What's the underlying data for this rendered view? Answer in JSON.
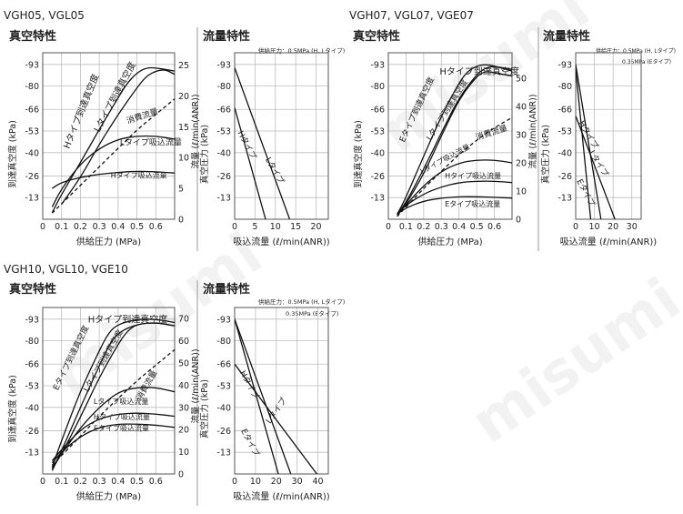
{
  "watermark": "misumi",
  "groups": [
    {
      "title": "VGH05, VGL05",
      "vac_title": "真空特性",
      "flow_title": "流量特性",
      "flow_note": [
        "供給圧力：0.5MPa (H, Lタイプ)"
      ]
    },
    {
      "title": "VGH07, VGL07, VGE07",
      "vac_title": "真空特性",
      "flow_title": "流量特性",
      "flow_note": [
        "供給圧力：0.5MPa (H, Lタイプ)",
        "0.35MPa (Eタイプ)"
      ]
    },
    {
      "title": "VGH10, VGL10, VGE10",
      "vac_title": "真空特性",
      "flow_title": "流量特性",
      "flow_note": [
        "供給圧力：0.5MPa (H, Lタイプ)",
        "0.35MPa (Eタイプ)"
      ]
    }
  ],
  "chart_data": [
    {
      "type": "line",
      "id": "vac05",
      "xlabel": "供給圧力 (MPa)",
      "ylabel": "到達真空度 (kPa)",
      "y2label": "流量 (ℓ/min(ANR))",
      "x_ticks": [
        "0",
        "0.1",
        "0.2",
        "0.3",
        "0.4",
        "0.5",
        "0.6"
      ],
      "y_ticks": [
        "-93",
        "-80",
        "-66",
        "-53",
        "-40",
        "-26",
        "-13"
      ],
      "y2_ticks": [
        "0",
        "5",
        "10",
        "15",
        "20",
        "25"
      ],
      "xlim": [
        0,
        0.7
      ],
      "ylim": [
        0,
        -100
      ],
      "y2lim": [
        0,
        27
      ],
      "series": [
        {
          "name": "Hタイプ到達真空度",
          "axis": "y",
          "dash": false,
          "points": [
            [
              0.05,
              -4
            ],
            [
              0.1,
              -15
            ],
            [
              0.2,
              -34
            ],
            [
              0.3,
              -54
            ],
            [
              0.4,
              -73
            ],
            [
              0.45,
              -82
            ],
            [
              0.5,
              -88
            ],
            [
              0.55,
              -91
            ],
            [
              0.6,
              -91
            ],
            [
              0.7,
              -89
            ]
          ]
        },
        {
          "name": "Lタイプ到達真空度",
          "axis": "y",
          "dash": false,
          "points": [
            [
              0.1,
              -9
            ],
            [
              0.2,
              -25
            ],
            [
              0.3,
              -45
            ],
            [
              0.4,
              -63
            ],
            [
              0.5,
              -79
            ],
            [
              0.55,
              -86
            ],
            [
              0.6,
              -89
            ],
            [
              0.65,
              -90
            ],
            [
              0.7,
              -87
            ]
          ]
        },
        {
          "name": "消費流量",
          "axis": "y2",
          "dash": true,
          "points": [
            [
              0.05,
              1
            ],
            [
              0.2,
              5.5
            ],
            [
              0.3,
              8.5
            ],
            [
              0.4,
              11.5
            ],
            [
              0.5,
              14.5
            ],
            [
              0.6,
              17
            ],
            [
              0.7,
              19.5
            ]
          ]
        },
        {
          "name": "Lタイプ吸込流量",
          "axis": "y2",
          "dash": false,
          "points": [
            [
              0.05,
              2
            ],
            [
              0.1,
              5
            ],
            [
              0.2,
              9
            ],
            [
              0.3,
              11.5
            ],
            [
              0.4,
              13
            ],
            [
              0.5,
              13.5
            ],
            [
              0.6,
              13.5
            ],
            [
              0.7,
              13
            ]
          ]
        },
        {
          "name": "Hタイプ吸込流量",
          "axis": "y2",
          "dash": false,
          "points": [
            [
              0.05,
              5
            ],
            [
              0.1,
              6
            ],
            [
              0.2,
              6.8
            ],
            [
              0.3,
              7.3
            ],
            [
              0.4,
              7.6
            ],
            [
              0.5,
              7.8
            ],
            [
              0.6,
              7.7
            ],
            [
              0.7,
              7.5
            ]
          ]
        }
      ]
    },
    {
      "type": "line",
      "id": "flow05",
      "xlabel": "吸込流量 (ℓ/min(ANR))",
      "ylabel": "真空圧力 (kPa)",
      "x_ticks": [
        "0",
        "5",
        "10",
        "15",
        "20"
      ],
      "y_ticks": [
        "-93",
        "-80",
        "-66",
        "-53",
        "-40",
        "-26",
        "-13"
      ],
      "xlim": [
        0,
        23
      ],
      "ylim": [
        0,
        -100
      ],
      "series": [
        {
          "name": "Hタイプ",
          "points": [
            [
              0,
              -67
            ],
            [
              7.6,
              0
            ]
          ]
        },
        {
          "name": "Lタイプ",
          "points": [
            [
              0,
              -91
            ],
            [
              13.5,
              0
            ]
          ]
        }
      ]
    },
    {
      "type": "line",
      "id": "vac07",
      "xlabel": "供給圧力 (MPa)",
      "ylabel": "到達真空度 (kPa)",
      "y2label": "流量 (ℓ/min(ANR))",
      "x_ticks": [
        "0",
        "0.1",
        "0.2",
        "0.3",
        "0.4",
        "0.5",
        "0.6"
      ],
      "y_ticks": [
        "-93",
        "-80",
        "-66",
        "-53",
        "-40",
        "-26",
        "-13"
      ],
      "y2_ticks": [
        "0",
        "10",
        "20",
        "30",
        "40",
        "50"
      ],
      "xlim": [
        0,
        0.7
      ],
      "ylim": [
        0,
        -100
      ],
      "y2lim": [
        0,
        59
      ],
      "series": [
        {
          "name": "Hタイプ到達真空度",
          "axis": "y",
          "dash": false,
          "points": [
            [
              0.05,
              -3
            ],
            [
              0.1,
              -13
            ],
            [
              0.2,
              -38
            ],
            [
              0.3,
              -62
            ],
            [
              0.4,
              -82
            ],
            [
              0.45,
              -89
            ],
            [
              0.5,
              -92
            ],
            [
              0.55,
              -93
            ],
            [
              0.6,
              -92
            ],
            [
              0.7,
              -89
            ]
          ]
        },
        {
          "name": "Lタイプ到達真空度",
          "axis": "y",
          "dash": false,
          "points": [
            [
              0.05,
              -3
            ],
            [
              0.1,
              -10
            ],
            [
              0.2,
              -30
            ],
            [
              0.3,
              -52
            ],
            [
              0.4,
              -73
            ],
            [
              0.5,
              -87
            ],
            [
              0.55,
              -91
            ],
            [
              0.6,
              -92
            ],
            [
              0.7,
              -90
            ]
          ]
        },
        {
          "name": "Eタイプ到達真空度",
          "axis": "y",
          "dash": false,
          "points": [
            [
              0.05,
              -2
            ],
            [
              0.1,
              -9
            ],
            [
              0.2,
              -27
            ],
            [
              0.3,
              -50
            ],
            [
              0.4,
              -72
            ],
            [
              0.5,
              -86
            ],
            [
              0.55,
              -89
            ],
            [
              0.6,
              -88
            ],
            [
              0.7,
              -86
            ]
          ]
        },
        {
          "name": "消費流量",
          "axis": "y2",
          "dash": true,
          "points": [
            [
              0.05,
              1
            ],
            [
              0.2,
              11
            ],
            [
              0.3,
              17
            ],
            [
              0.4,
              23
            ],
            [
              0.5,
              28
            ],
            [
              0.6,
              32.5
            ],
            [
              0.7,
              36
            ]
          ]
        },
        {
          "name": "Lタイプ吸込流量",
          "axis": "y2",
          "dash": false,
          "points": [
            [
              0.05,
              2
            ],
            [
              0.1,
              5
            ],
            [
              0.2,
              12
            ],
            [
              0.3,
              17
            ],
            [
              0.4,
              20
            ],
            [
              0.5,
              21
            ],
            [
              0.6,
              21
            ],
            [
              0.7,
              20
            ]
          ]
        },
        {
          "name": "Hタイプ吸込流量",
          "axis": "y2",
          "dash": false,
          "points": [
            [
              0.05,
              2
            ],
            [
              0.1,
              5
            ],
            [
              0.2,
              9
            ],
            [
              0.3,
              11.5
            ],
            [
              0.4,
              13
            ],
            [
              0.5,
              13.5
            ],
            [
              0.6,
              13.5
            ],
            [
              0.7,
              13
            ]
          ]
        },
        {
          "name": "Eタイプ吸込流量",
          "axis": "y2",
          "dash": false,
          "points": [
            [
              0.05,
              2
            ],
            [
              0.1,
              4
            ],
            [
              0.2,
              6.5
            ],
            [
              0.3,
              7.5
            ],
            [
              0.4,
              8
            ],
            [
              0.5,
              8
            ],
            [
              0.6,
              7.8
            ],
            [
              0.7,
              7.5
            ]
          ]
        }
      ]
    },
    {
      "type": "line",
      "id": "flow07",
      "xlabel": "吸込流量 (ℓ/min(ANR))",
      "ylabel": "真空圧力 (kPa)",
      "x_ticks": [
        "0",
        "10",
        "20",
        "30"
      ],
      "y_ticks": [
        "-93",
        "-80",
        "-66",
        "-53",
        "-40",
        "-26",
        "-13"
      ],
      "xlim": [
        0,
        35
      ],
      "ylim": [
        0,
        -100
      ],
      "series": [
        {
          "name": "Hタイプ",
          "points": [
            [
              0,
              -93
            ],
            [
              13.5,
              0
            ]
          ]
        },
        {
          "name": "Lタイプ",
          "points": [
            [
              0,
              -62
            ],
            [
              21,
              0
            ]
          ]
        },
        {
          "name": "Eタイプ",
          "points": [
            [
              0,
              -90
            ],
            [
              8,
              0
            ]
          ]
        }
      ]
    },
    {
      "type": "line",
      "id": "vac10",
      "xlabel": "供給圧力 (MPa)",
      "ylabel": "到達真空度 (kPa)",
      "y2label": "流量 (ℓ/min(ANR))",
      "x_ticks": [
        "0",
        "0.1",
        "0.2",
        "0.3",
        "0.4",
        "0.5",
        "0.6"
      ],
      "y_ticks": [
        "-93",
        "-80",
        "-66",
        "-53",
        "-40",
        "-26",
        "-13"
      ],
      "y2_ticks": [
        "0",
        "10",
        "20",
        "30",
        "40",
        "50",
        "60",
        "70"
      ],
      "xlim": [
        0,
        0.7
      ],
      "ylim": [
        0,
        -100
      ],
      "y2lim": [
        0,
        75
      ],
      "series": [
        {
          "name": "Hタイプ到達真空度",
          "axis": "y",
          "dash": false,
          "points": [
            [
              0.05,
              -4
            ],
            [
              0.1,
              -20
            ],
            [
              0.2,
              -50
            ],
            [
              0.3,
              -74
            ],
            [
              0.35,
              -85
            ],
            [
              0.4,
              -90
            ],
            [
              0.5,
              -93
            ],
            [
              0.6,
              -93
            ],
            [
              0.7,
              -91
            ]
          ]
        },
        {
          "name": "Lタイプ到達真空度",
          "axis": "y",
          "dash": false,
          "points": [
            [
              0.05,
              -3
            ],
            [
              0.1,
              -12
            ],
            [
              0.2,
              -34
            ],
            [
              0.3,
              -58
            ],
            [
              0.4,
              -78
            ],
            [
              0.45,
              -86
            ],
            [
              0.5,
              -90
            ],
            [
              0.6,
              -91
            ],
            [
              0.7,
              -89
            ]
          ]
        },
        {
          "name": "Eタイプ到達真空度",
          "axis": "y",
          "dash": false,
          "points": [
            [
              0.05,
              -2
            ],
            [
              0.1,
              -14
            ],
            [
              0.2,
              -40
            ],
            [
              0.3,
              -65
            ],
            [
              0.35,
              -77
            ],
            [
              0.4,
              -85
            ],
            [
              0.5,
              -90
            ],
            [
              0.6,
              -91
            ],
            [
              0.7,
              -89
            ]
          ]
        },
        {
          "name": "消費流量",
          "axis": "y2",
          "dash": true,
          "points": [
            [
              0.05,
              4
            ],
            [
              0.2,
              17
            ],
            [
              0.3,
              26
            ],
            [
              0.4,
              34
            ],
            [
              0.5,
              42
            ],
            [
              0.6,
              49
            ],
            [
              0.7,
              56
            ]
          ]
        },
        {
          "name": "Lタイプ吸込流量",
          "axis": "y2",
          "dash": false,
          "points": [
            [
              0.05,
              3
            ],
            [
              0.1,
              9
            ],
            [
              0.2,
              21
            ],
            [
              0.3,
              30
            ],
            [
              0.4,
              37
            ],
            [
              0.5,
              39
            ],
            [
              0.6,
              39
            ],
            [
              0.7,
              37
            ]
          ]
        },
        {
          "name": "Hタイプ吸込流量",
          "axis": "y2",
          "dash": false,
          "points": [
            [
              0.05,
              6
            ],
            [
              0.1,
              11
            ],
            [
              0.2,
              20
            ],
            [
              0.3,
              25
            ],
            [
              0.4,
              27
            ],
            [
              0.5,
              27.5
            ],
            [
              0.6,
              27
            ],
            [
              0.7,
              26
            ]
          ]
        },
        {
          "name": "Eタイプ吸込流量",
          "axis": "y2",
          "dash": false,
          "points": [
            [
              0.05,
              5
            ],
            [
              0.1,
              10
            ],
            [
              0.2,
              17
            ],
            [
              0.3,
              21
            ],
            [
              0.4,
              22.5
            ],
            [
              0.5,
              22.5
            ],
            [
              0.6,
              22
            ],
            [
              0.7,
              21
            ]
          ]
        }
      ]
    },
    {
      "type": "line",
      "id": "flow10",
      "xlabel": "吸込流量 (ℓ/min(ANR))",
      "ylabel": "真空圧力 (kPa)",
      "x_ticks": [
        "0",
        "10",
        "20",
        "30",
        "40"
      ],
      "y_ticks": [
        "-93",
        "-80",
        "-66",
        "-53",
        "-40",
        "-26",
        "-13"
      ],
      "xlim": [
        0,
        45
      ],
      "ylim": [
        0,
        -100
      ],
      "series": [
        {
          "name": "Hタイプ",
          "points": [
            [
              0,
              -93
            ],
            [
              27,
              0
            ]
          ]
        },
        {
          "name": "Lタイプ",
          "points": [
            [
              0,
              -66
            ],
            [
              39.5,
              0
            ]
          ]
        },
        {
          "name": "Eタイプ",
          "points": [
            [
              0,
              -93
            ],
            [
              21,
              0
            ]
          ]
        }
      ]
    }
  ]
}
